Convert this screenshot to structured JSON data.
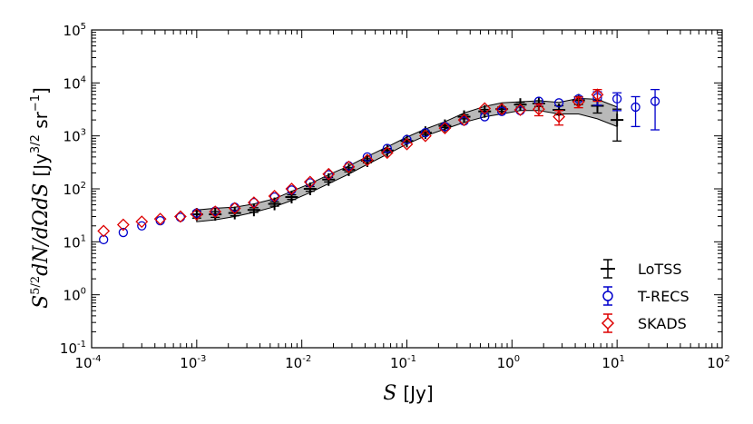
{
  "chart_data": {
    "type": "scatter",
    "x_scale": "log",
    "y_scale": "log",
    "xlim": [
      0.0001,
      100
    ],
    "ylim": [
      0.1,
      100000
    ],
    "xlabel": "S [Jy]",
    "ylabel": "S^{5/2}dN/dΩdS [Jy^{3/2} sr^{-1}]",
    "xlabel_parts": {
      "var": "S",
      "unit": "[Jy]"
    },
    "ylabel_parts": {
      "main": "S",
      "exp1": "5/2",
      "mid": "dN/dΩdS",
      "unit_open": "[Jy",
      "exp2": "3/2",
      "unit_mid": " sr",
      "exp3": "−1",
      "unit_close": "]"
    },
    "x_ticks": [
      {
        "value": 0.0001,
        "base": "10",
        "exp": "-4"
      },
      {
        "value": 0.001,
        "base": "10",
        "exp": "-3"
      },
      {
        "value": 0.01,
        "base": "10",
        "exp": "-2"
      },
      {
        "value": 0.1,
        "base": "10",
        "exp": "-1"
      },
      {
        "value": 1,
        "base": "10",
        "exp": "0"
      },
      {
        "value": 10,
        "base": "10",
        "exp": "1"
      },
      {
        "value": 100,
        "base": "10",
        "exp": "2"
      }
    ],
    "y_ticks": [
      {
        "value": 0.1,
        "base": "10",
        "exp": "-1"
      },
      {
        "value": 1,
        "base": "10",
        "exp": "0"
      },
      {
        "value": 10,
        "base": "10",
        "exp": "1"
      },
      {
        "value": 100,
        "base": "10",
        "exp": "2"
      },
      {
        "value": 1000,
        "base": "10",
        "exp": "3"
      },
      {
        "value": 10000,
        "base": "10",
        "exp": "4"
      },
      {
        "value": 100000,
        "base": "10",
        "exp": "5"
      }
    ],
    "legend_position": "bottom-right",
    "band": {
      "name": "LoTSS uncertainty band",
      "color": "#808080",
      "x": [
        0.001,
        0.0015,
        0.0023,
        0.0035,
        0.0055,
        0.008,
        0.012,
        0.018,
        0.028,
        0.042,
        0.065,
        0.1,
        0.15,
        0.23,
        0.35,
        0.55,
        0.8,
        1.2,
        1.8,
        2.8,
        4.3,
        6.5,
        10
      ],
      "lower": [
        24,
        26,
        30,
        36,
        46,
        60,
        85,
        125,
        190,
        290,
        450,
        700,
        1000,
        1350,
        1800,
        2300,
        2600,
        3000,
        3000,
        2600,
        2600,
        2100,
        1500
      ],
      "upper": [
        40,
        43,
        45,
        52,
        65,
        90,
        125,
        185,
        270,
        410,
        620,
        950,
        1350,
        1850,
        2700,
        3600,
        4200,
        4400,
        4600,
        4300,
        5100,
        4900,
        3500
      ]
    },
    "series": [
      {
        "name": "LoTSS",
        "marker": "plus",
        "color": "#000000",
        "x": [
          0.001,
          0.0015,
          0.0023,
          0.0035,
          0.0055,
          0.008,
          0.012,
          0.018,
          0.028,
          0.042,
          0.065,
          0.1,
          0.15,
          0.23,
          0.35,
          0.55,
          0.8,
          1.2,
          1.8,
          2.8,
          4.3,
          6.5,
          10
        ],
        "y": [
          33,
          33,
          35,
          40,
          52,
          70,
          100,
          150,
          230,
          340,
          530,
          800,
          1150,
          1550,
          2300,
          2900,
          3200,
          3900,
          4100,
          3100,
          4700,
          3700,
          2000
        ],
        "yerr_low": [
          5,
          4,
          4,
          4,
          5,
          7,
          10,
          15,
          20,
          30,
          45,
          60,
          90,
          110,
          200,
          250,
          300,
          400,
          500,
          600,
          800,
          1000,
          1200
        ],
        "yerr_high": [
          5,
          4,
          4,
          4,
          5,
          7,
          10,
          15,
          20,
          30,
          45,
          60,
          90,
          110,
          200,
          250,
          300,
          400,
          500,
          600,
          800,
          1000,
          1200
        ]
      },
      {
        "name": "T-RECS",
        "marker": "circle",
        "color": "#0000cc",
        "x": [
          0.00013,
          0.0002,
          0.0003,
          0.00045,
          0.0007,
          0.001,
          0.0015,
          0.0023,
          0.0035,
          0.0055,
          0.008,
          0.012,
          0.018,
          0.028,
          0.042,
          0.065,
          0.1,
          0.15,
          0.23,
          0.35,
          0.55,
          0.8,
          1.2,
          1.8,
          2.8,
          4.3,
          6.5,
          10,
          15,
          23
        ],
        "y": [
          11,
          15,
          20,
          25,
          29,
          35,
          38,
          45,
          55,
          70,
          95,
          130,
          185,
          270,
          400,
          580,
          850,
          1150,
          1500,
          1900,
          2300,
          2900,
          3000,
          4500,
          4200,
          5000,
          5300,
          5000,
          3500,
          4500
        ],
        "yerr_low": [
          0,
          0,
          0,
          0,
          0,
          0,
          0,
          0,
          0,
          0,
          0,
          0,
          0,
          0,
          0,
          0,
          0,
          0,
          0,
          0,
          0,
          0,
          0,
          0,
          0,
          0,
          1500,
          2000,
          2000,
          3200
        ],
        "yerr_high": [
          0,
          0,
          0,
          0,
          0,
          0,
          0,
          0,
          0,
          0,
          0,
          0,
          0,
          0,
          0,
          0,
          0,
          0,
          0,
          0,
          0,
          0,
          0,
          0,
          0,
          0,
          1500,
          1500,
          2000,
          3000
        ]
      },
      {
        "name": "SKADS",
        "marker": "diamond",
        "color": "#dd0000",
        "x": [
          0.00013,
          0.0002,
          0.0003,
          0.00045,
          0.0007,
          0.001,
          0.0015,
          0.0023,
          0.0035,
          0.0055,
          0.008,
          0.012,
          0.018,
          0.028,
          0.042,
          0.065,
          0.1,
          0.15,
          0.23,
          0.35,
          0.55,
          0.8,
          1.2,
          1.8,
          2.8,
          4.3,
          6.5
        ],
        "y": [
          16,
          21,
          24,
          27,
          30,
          33,
          37,
          43,
          55,
          73,
          100,
          135,
          190,
          260,
          350,
          480,
          700,
          1000,
          1400,
          2000,
          3300,
          3200,
          3100,
          3200,
          2300,
          4400,
          6000
        ],
        "yerr_low": [
          0,
          0,
          0,
          0,
          0,
          0,
          0,
          0,
          0,
          0,
          0,
          0,
          0,
          0,
          0,
          0,
          0,
          0,
          0,
          0,
          0,
          0,
          0,
          800,
          700,
          1000,
          1500
        ],
        "yerr_high": [
          0,
          0,
          0,
          0,
          0,
          0,
          0,
          0,
          0,
          0,
          0,
          0,
          0,
          0,
          0,
          0,
          0,
          0,
          0,
          0,
          0,
          0,
          0,
          800,
          700,
          1000,
          1500
        ]
      }
    ]
  }
}
